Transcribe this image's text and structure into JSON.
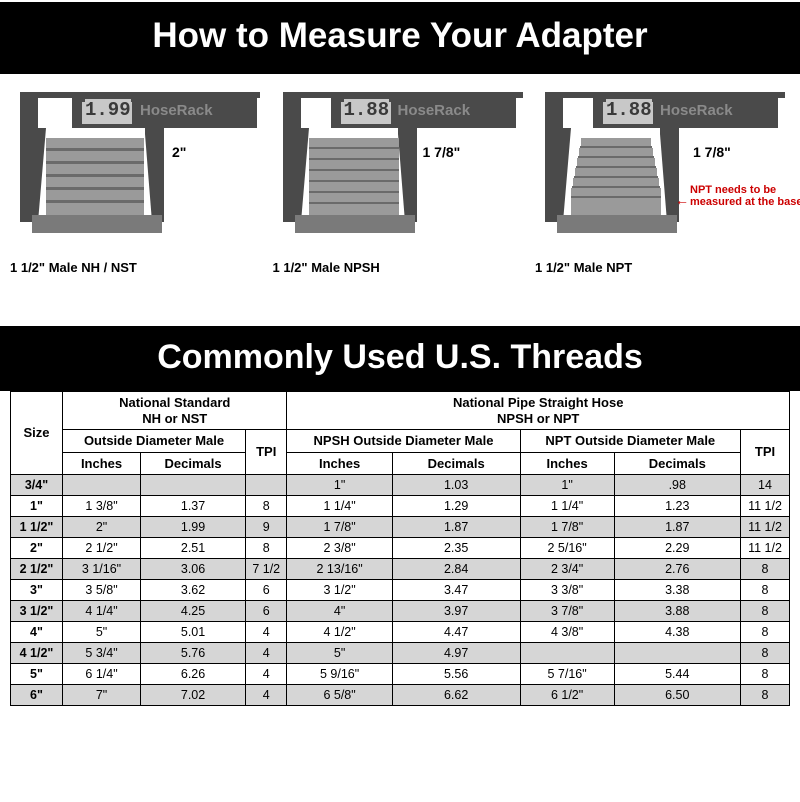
{
  "banners": {
    "title1": "How to Measure Your Adapter",
    "title2": "Commonly Used U.S. Threads"
  },
  "calipers": [
    {
      "readout": "1.99",
      "brand": "HoseRack",
      "dim": "2\"",
      "label": "1 1/2\" Male NH / NST"
    },
    {
      "readout": "1.88",
      "brand": "HoseRack",
      "dim": "1 7/8\"",
      "label": "1 1/2\" Male NPSH"
    },
    {
      "readout": "1.88",
      "brand": "HoseRack",
      "dim": "1 7/8\"",
      "label": "1 1/2\" Male NPT"
    }
  ],
  "npt_note": "NPT needs to be measured at the base",
  "table": {
    "group_headers": {
      "size": "Size",
      "ns": {
        "title": "National Standard",
        "sub": "NH or NST"
      },
      "np": {
        "title": "National Pipe Straight Hose",
        "sub": "NPSH or NPT"
      }
    },
    "sub_headers": {
      "od_male": "Outside Diameter Male",
      "tpi": "TPI",
      "npsh_od": "NPSH Outside Diameter Male",
      "npt_od": "NPT Outside Diameter Male",
      "inches": "Inches",
      "decimals": "Decimals"
    },
    "rows": [
      {
        "size": "3/4\"",
        "ns_in": "",
        "ns_dec": "",
        "ns_tpi": "",
        "npsh_in": "1\"",
        "npsh_dec": "1.03",
        "npt_in": "1\"",
        "npt_dec": ".98",
        "np_tpi": "14",
        "shade": true
      },
      {
        "size": "1\"",
        "ns_in": "1 3/8\"",
        "ns_dec": "1.37",
        "ns_tpi": "8",
        "npsh_in": "1 1/4\"",
        "npsh_dec": "1.29",
        "npt_in": "1 1/4\"",
        "npt_dec": "1.23",
        "np_tpi": "11 1/2",
        "shade": false
      },
      {
        "size": "1 1/2\"",
        "ns_in": "2\"",
        "ns_dec": "1.99",
        "ns_tpi": "9",
        "npsh_in": "1 7/8\"",
        "npsh_dec": "1.87",
        "npt_in": "1 7/8\"",
        "npt_dec": "1.87",
        "np_tpi": "11 1/2",
        "shade": true
      },
      {
        "size": "2\"",
        "ns_in": "2 1/2\"",
        "ns_dec": "2.51",
        "ns_tpi": "8",
        "npsh_in": "2 3/8\"",
        "npsh_dec": "2.35",
        "npt_in": "2 5/16\"",
        "npt_dec": "2.29",
        "np_tpi": "11 1/2",
        "shade": false
      },
      {
        "size": "2 1/2\"",
        "ns_in": "3 1/16\"",
        "ns_dec": "3.06",
        "ns_tpi": "7 1/2",
        "npsh_in": "2 13/16\"",
        "npsh_dec": "2.84",
        "npt_in": "2 3/4\"",
        "npt_dec": "2.76",
        "np_tpi": "8",
        "shade": true
      },
      {
        "size": "3\"",
        "ns_in": "3 5/8\"",
        "ns_dec": "3.62",
        "ns_tpi": "6",
        "npsh_in": "3 1/2\"",
        "npsh_dec": "3.47",
        "npt_in": "3 3/8\"",
        "npt_dec": "3.38",
        "np_tpi": "8",
        "shade": false
      },
      {
        "size": "3 1/2\"",
        "ns_in": "4 1/4\"",
        "ns_dec": "4.25",
        "ns_tpi": "6",
        "npsh_in": "4\"",
        "npsh_dec": "3.97",
        "npt_in": "3 7/8\"",
        "npt_dec": "3.88",
        "np_tpi": "8",
        "shade": true
      },
      {
        "size": "4\"",
        "ns_in": "5\"",
        "ns_dec": "5.01",
        "ns_tpi": "4",
        "npsh_in": "4 1/2\"",
        "npsh_dec": "4.47",
        "npt_in": "4 3/8\"",
        "npt_dec": "4.38",
        "np_tpi": "8",
        "shade": false
      },
      {
        "size": "4 1/2\"",
        "ns_in": "5 3/4\"",
        "ns_dec": "5.76",
        "ns_tpi": "4",
        "npsh_in": "5\"",
        "npsh_dec": "4.97",
        "npt_in": "",
        "npt_dec": "",
        "np_tpi": "8",
        "shade": true
      },
      {
        "size": "5\"",
        "ns_in": "6 1/4\"",
        "ns_dec": "6.26",
        "ns_tpi": "4",
        "npsh_in": "5 9/16\"",
        "npsh_dec": "5.56",
        "npt_in": "5 7/16\"",
        "npt_dec": "5.44",
        "np_tpi": "8",
        "shade": false
      },
      {
        "size": "6\"",
        "ns_in": "7\"",
        "ns_dec": "7.02",
        "ns_tpi": "4",
        "npsh_in": "6 5/8\"",
        "npsh_dec": "6.62",
        "npt_in": "6 1/2\"",
        "npt_dec": "6.50",
        "np_tpi": "8",
        "shade": true
      }
    ]
  },
  "caliper_svg": {
    "body_fill": "#4a4a4a",
    "display_fill": "#c8c8c8",
    "thread_fill": "#9a9a9a",
    "thread_dark": "#6a6a6a",
    "base_fill": "#7a7a7a"
  }
}
